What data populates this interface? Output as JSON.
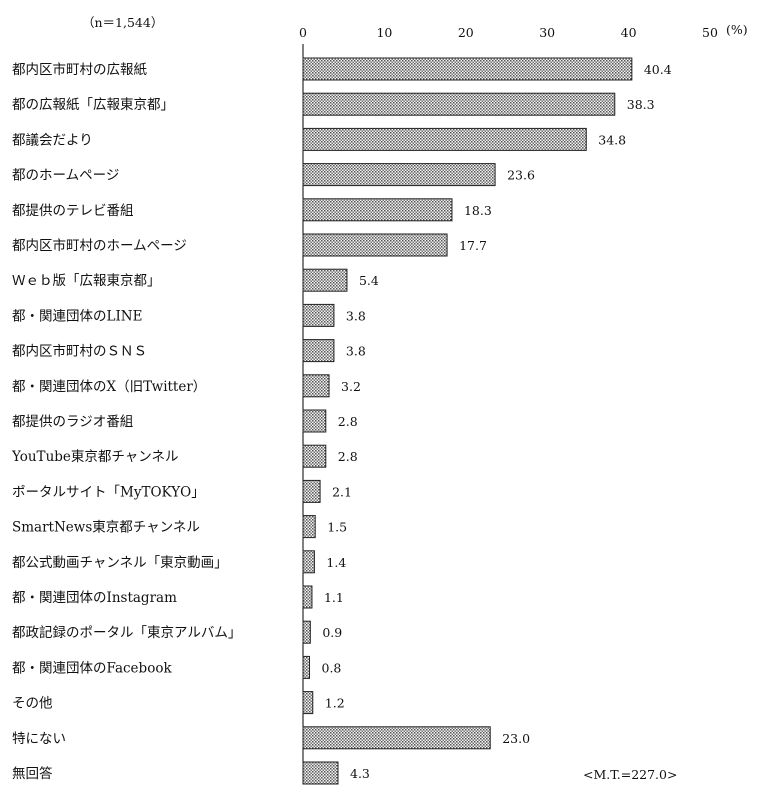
{
  "chart_data": {
    "type": "bar",
    "orientation": "horizontal",
    "sample_note": "（n＝1,544）",
    "unit": "(%)",
    "total_note": "<M.T.=227.0>",
    "xlim": [
      0,
      50
    ],
    "xticks": [
      0,
      10,
      20,
      30,
      40,
      50
    ],
    "grid": false,
    "categories": [
      "都内区市町村の広報紙",
      "都の広報紙「広報東京都」",
      "都議会だより",
      "都のホームページ",
      "都提供のテレビ番組",
      "都内区市町村のホームページ",
      "Ｗｅｂ版「広報東京都」",
      "都・関連団体のLINE",
      "都内区市町村のＳＮＳ",
      "都・関連団体のX（旧Twitter）",
      "都提供のラジオ番組",
      "YouTube東京都チャンネル",
      "ポータルサイト「MyTOKYO」",
      "SmartNews東京都チャンネル",
      "都公式動画チャンネル「東京動画」",
      "都・関連団体のInstagram",
      "都政記録のポータル「東京アルバム」",
      "都・関連団体のFacebook",
      "その他",
      "特にない",
      "無回答"
    ],
    "values": [
      40.4,
      38.3,
      34.8,
      23.6,
      18.3,
      17.7,
      5.4,
      3.8,
      3.8,
      3.2,
      2.8,
      2.8,
      2.1,
      1.5,
      1.4,
      1.1,
      0.9,
      0.8,
      1.2,
      23.0,
      4.3
    ],
    "value_labels": [
      "40.4",
      "38.3",
      "34.8",
      "23.6",
      "18.3",
      "17.7",
      "5.4",
      "3.8",
      "3.8",
      "3.2",
      "2.8",
      "2.8",
      "2.1",
      "1.5",
      "1.4",
      "1.1",
      "0.9",
      "0.8",
      "1.2",
      "23.0",
      "4.3"
    ],
    "colors": {
      "bar_fill": "#d4d4d4",
      "bar_stroke": "#222222",
      "axis": "#000000"
    }
  }
}
